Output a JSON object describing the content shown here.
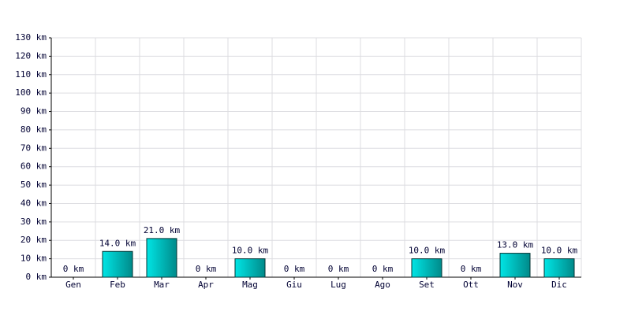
{
  "chart_data": {
    "type": "bar",
    "categories": [
      "Gen",
      "Feb",
      "Mar",
      "Apr",
      "Mag",
      "Giu",
      "Lug",
      "Ago",
      "Set",
      "Ott",
      "Nov",
      "Dic"
    ],
    "values": [
      0,
      14,
      21,
      0,
      10,
      0,
      0,
      0,
      10,
      0,
      13,
      10
    ],
    "value_labels": [
      "0 km",
      "14.0 km",
      "21.0 km",
      "0 km",
      "10.0 km",
      "0 km",
      "0 km",
      "0 km",
      "10.0 km",
      "0 km",
      "13.0 km",
      "10.0 km"
    ],
    "color": "#00e5e5",
    "ylim": [
      0,
      130
    ],
    "yticks": [
      {
        "value": 0,
        "label": "0 km"
      },
      {
        "value": 10,
        "label": "10 km"
      },
      {
        "value": 20,
        "label": "20 km"
      },
      {
        "value": 30,
        "label": "30 km"
      },
      {
        "value": 40,
        "label": "40 km"
      },
      {
        "value": 50,
        "label": "50 km"
      },
      {
        "value": 60,
        "label": "60 km"
      },
      {
        "value": 70,
        "label": "70 km"
      },
      {
        "value": 80,
        "label": "80 km"
      },
      {
        "value": 90,
        "label": "90 km"
      },
      {
        "value": 100,
        "label": "100 km"
      },
      {
        "value": 110,
        "label": "110 km"
      },
      {
        "value": 120,
        "label": "120 km"
      },
      {
        "value": 130,
        "label": "130 km"
      }
    ],
    "grid": true
  }
}
